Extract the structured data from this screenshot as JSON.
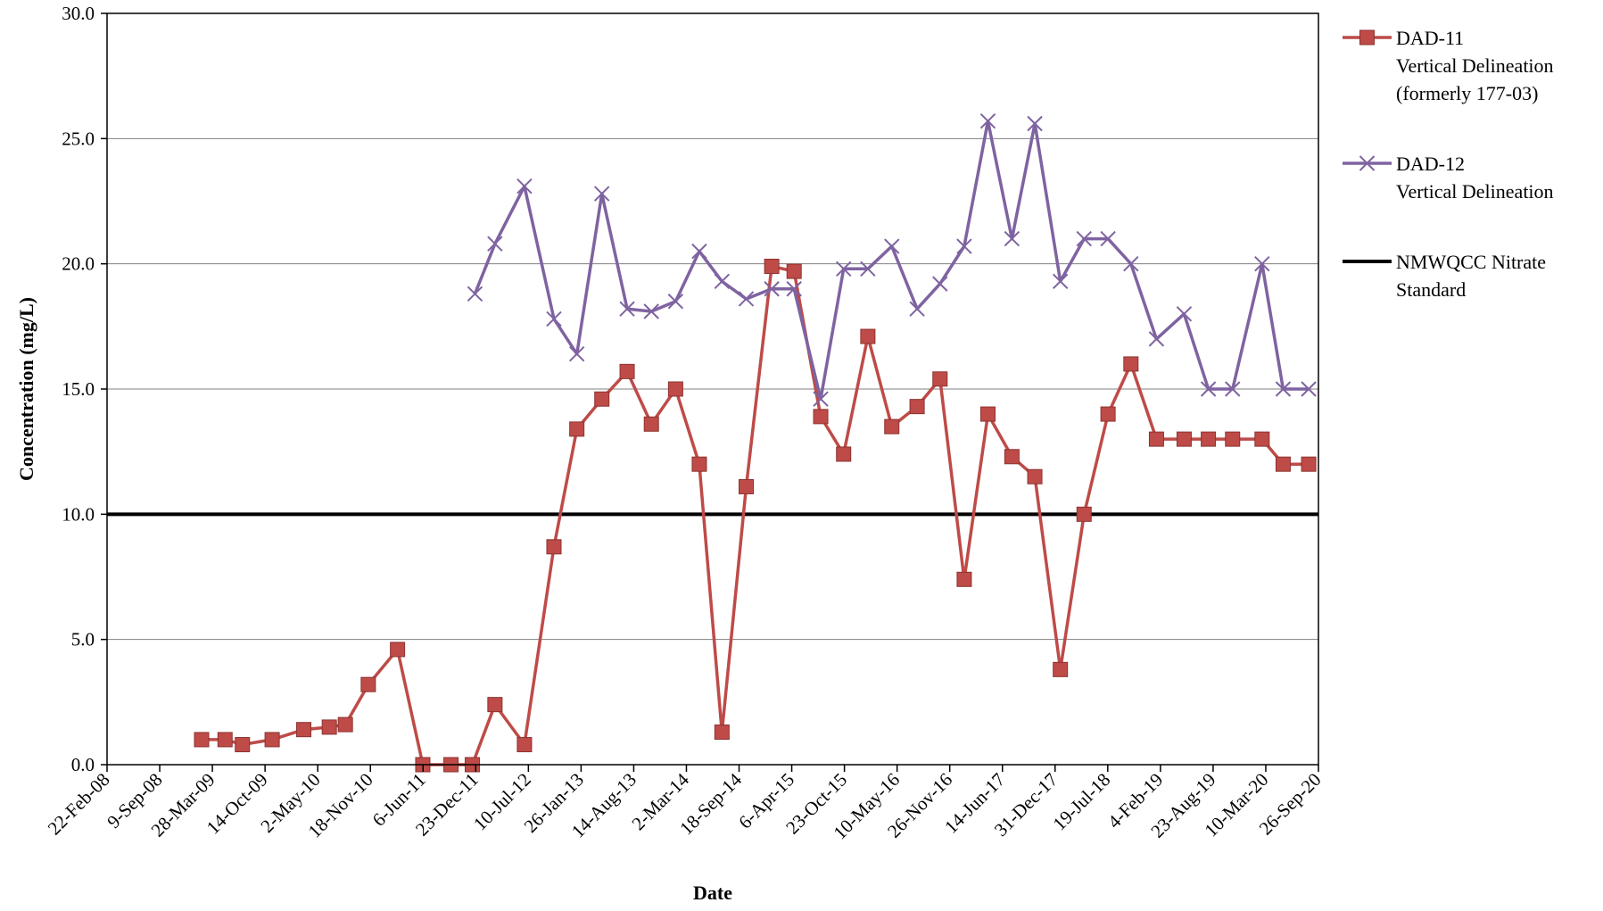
{
  "chart_data": {
    "type": "line",
    "title": "",
    "xlabel": "Date",
    "ylabel": "Concentration  (mg/L)",
    "ylim": [
      0,
      30
    ],
    "y_ticks": [
      "0.0",
      "5.0",
      "10.0",
      "15.0",
      "20.0",
      "25.0",
      "30.0"
    ],
    "y_tick_values": [
      0,
      5,
      10,
      15,
      20,
      25,
      30
    ],
    "x_range": [
      "2008-02-22",
      "2020-09-26"
    ],
    "x_ticks": [
      {
        "date": "2008-02-22",
        "label": "22-Feb-08"
      },
      {
        "date": "2008-09-09",
        "label": "9-Sep-08"
      },
      {
        "date": "2009-03-28",
        "label": "28-Mar-09"
      },
      {
        "date": "2009-10-14",
        "label": "14-Oct-09"
      },
      {
        "date": "2010-05-02",
        "label": "2-May-10"
      },
      {
        "date": "2010-11-18",
        "label": "18-Nov-10"
      },
      {
        "date": "2011-06-06",
        "label": "6-Jun-11"
      },
      {
        "date": "2011-12-23",
        "label": "23-Dec-11"
      },
      {
        "date": "2012-07-10",
        "label": "10-Jul-12"
      },
      {
        "date": "2013-01-26",
        "label": "26-Jan-13"
      },
      {
        "date": "2013-08-14",
        "label": "14-Aug-13"
      },
      {
        "date": "2014-03-02",
        "label": "2-Mar-14"
      },
      {
        "date": "2014-09-18",
        "label": "18-Sep-14"
      },
      {
        "date": "2015-04-06",
        "label": "6-Apr-15"
      },
      {
        "date": "2015-10-23",
        "label": "23-Oct-15"
      },
      {
        "date": "2016-05-10",
        "label": "10-May-16"
      },
      {
        "date": "2016-11-26",
        "label": "26-Nov-16"
      },
      {
        "date": "2017-06-14",
        "label": "14-Jun-17"
      },
      {
        "date": "2017-12-31",
        "label": "31-Dec-17"
      },
      {
        "date": "2018-07-19",
        "label": "19-Jul-18"
      },
      {
        "date": "2019-02-04",
        "label": "4-Feb-19"
      },
      {
        "date": "2019-08-23",
        "label": "23-Aug-19"
      },
      {
        "date": "2020-03-10",
        "label": "10-Mar-20"
      },
      {
        "date": "2020-09-26",
        "label": "26-Sep-20"
      }
    ],
    "grid": "horizontal",
    "legend_position": "right",
    "series": [
      {
        "name": "DAD-11",
        "label_lines": [
          "DAD-11",
          "Vertical Delineation",
          "(formerly 177-03)"
        ],
        "color": "#be4b48",
        "marker": "square",
        "points": [
          {
            "x": "2009-02-15",
            "y": 1.0
          },
          {
            "x": "2009-05-15",
            "y": 1.0
          },
          {
            "x": "2009-07-20",
            "y": 0.8
          },
          {
            "x": "2009-11-10",
            "y": 1.0
          },
          {
            "x": "2010-03-10",
            "y": 1.4
          },
          {
            "x": "2010-06-15",
            "y": 1.5
          },
          {
            "x": "2010-08-15",
            "y": 1.6
          },
          {
            "x": "2010-11-10",
            "y": 3.2
          },
          {
            "x": "2011-03-01",
            "y": 4.6
          },
          {
            "x": "2011-06-05",
            "y": 0.0
          },
          {
            "x": "2011-09-20",
            "y": 0.0
          },
          {
            "x": "2011-12-10",
            "y": 0.0
          },
          {
            "x": "2012-03-05",
            "y": 2.4
          },
          {
            "x": "2012-06-25",
            "y": 0.8
          },
          {
            "x": "2012-10-15",
            "y": 8.7
          },
          {
            "x": "2013-01-10",
            "y": 13.4
          },
          {
            "x": "2013-04-15",
            "y": 14.6
          },
          {
            "x": "2013-07-20",
            "y": 15.7
          },
          {
            "x": "2013-10-20",
            "y": 13.6
          },
          {
            "x": "2014-01-20",
            "y": 15.0
          },
          {
            "x": "2014-04-20",
            "y": 12.0
          },
          {
            "x": "2014-07-15",
            "y": 1.3
          },
          {
            "x": "2014-10-15",
            "y": 11.1
          },
          {
            "x": "2015-01-20",
            "y": 19.9
          },
          {
            "x": "2015-04-15",
            "y": 19.7
          },
          {
            "x": "2015-07-25",
            "y": 13.9
          },
          {
            "x": "2015-10-20",
            "y": 12.4
          },
          {
            "x": "2016-01-20",
            "y": 17.1
          },
          {
            "x": "2016-04-20",
            "y": 13.5
          },
          {
            "x": "2016-07-25",
            "y": 14.3
          },
          {
            "x": "2016-10-20",
            "y": 15.4
          },
          {
            "x": "2017-01-20",
            "y": 7.4
          },
          {
            "x": "2017-04-20",
            "y": 14.0
          },
          {
            "x": "2017-07-20",
            "y": 12.3
          },
          {
            "x": "2017-10-15",
            "y": 11.5
          },
          {
            "x": "2018-01-20",
            "y": 3.8
          },
          {
            "x": "2018-04-20",
            "y": 10.0
          },
          {
            "x": "2018-07-20",
            "y": 14.0
          },
          {
            "x": "2018-10-15",
            "y": 16.0
          },
          {
            "x": "2019-01-20",
            "y": 13.0
          },
          {
            "x": "2019-05-05",
            "y": 13.0
          },
          {
            "x": "2019-08-05",
            "y": 13.0
          },
          {
            "x": "2019-11-05",
            "y": 13.0
          },
          {
            "x": "2020-02-25",
            "y": 13.0
          },
          {
            "x": "2020-05-15",
            "y": 12.0
          },
          {
            "x": "2020-08-20",
            "y": 12.0
          }
        ]
      },
      {
        "name": "DAD-12",
        "label_lines": [
          "DAD-12",
          "Vertical Delineation"
        ],
        "color": "#7f63a1",
        "marker": "x",
        "points": [
          {
            "x": "2011-12-20",
            "y": 18.8
          },
          {
            "x": "2012-03-05",
            "y": 20.8
          },
          {
            "x": "2012-06-25",
            "y": 23.1
          },
          {
            "x": "2012-10-15",
            "y": 17.8
          },
          {
            "x": "2013-01-10",
            "y": 16.4
          },
          {
            "x": "2013-04-15",
            "y": 22.8
          },
          {
            "x": "2013-07-20",
            "y": 18.2
          },
          {
            "x": "2013-10-20",
            "y": 18.1
          },
          {
            "x": "2014-01-20",
            "y": 18.5
          },
          {
            "x": "2014-04-20",
            "y": 20.5
          },
          {
            "x": "2014-07-15",
            "y": 19.3
          },
          {
            "x": "2014-10-15",
            "y": 18.6
          },
          {
            "x": "2015-01-20",
            "y": 19.0
          },
          {
            "x": "2015-04-15",
            "y": 19.0
          },
          {
            "x": "2015-07-25",
            "y": 14.6
          },
          {
            "x": "2015-10-20",
            "y": 19.8
          },
          {
            "x": "2016-01-20",
            "y": 19.8
          },
          {
            "x": "2016-04-20",
            "y": 20.7
          },
          {
            "x": "2016-07-25",
            "y": 18.2
          },
          {
            "x": "2016-10-20",
            "y": 19.2
          },
          {
            "x": "2017-01-20",
            "y": 20.7
          },
          {
            "x": "2017-04-20",
            "y": 25.7
          },
          {
            "x": "2017-07-20",
            "y": 21.0
          },
          {
            "x": "2017-10-15",
            "y": 25.6
          },
          {
            "x": "2018-01-20",
            "y": 19.3
          },
          {
            "x": "2018-04-20",
            "y": 21.0
          },
          {
            "x": "2018-07-20",
            "y": 21.0
          },
          {
            "x": "2018-10-15",
            "y": 20.0
          },
          {
            "x": "2019-01-20",
            "y": 17.0
          },
          {
            "x": "2019-05-05",
            "y": 18.0
          },
          {
            "x": "2019-08-05",
            "y": 15.0
          },
          {
            "x": "2019-11-05",
            "y": 15.0
          },
          {
            "x": "2020-02-25",
            "y": 20.0
          },
          {
            "x": "2020-05-15",
            "y": 15.0
          },
          {
            "x": "2020-08-20",
            "y": 15.0
          }
        ]
      }
    ],
    "reference_lines": [
      {
        "name": "NMWQCC Nitrate Standard",
        "label_lines": [
          "NMWQCC Nitrate",
          "Standard"
        ],
        "y": 10.0,
        "color": "#000000"
      }
    ]
  }
}
